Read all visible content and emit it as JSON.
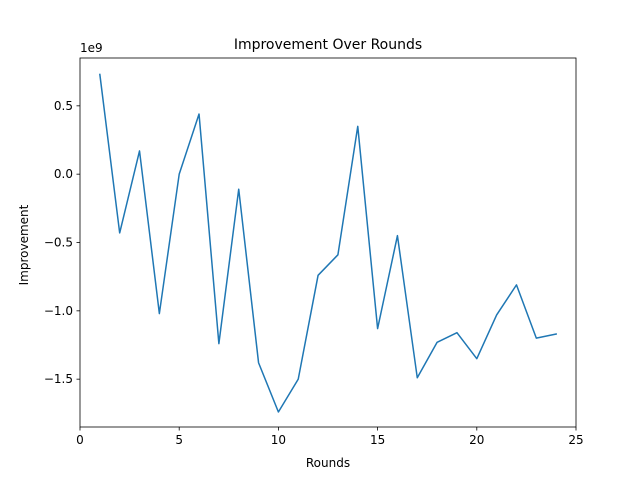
{
  "chart_data": {
    "type": "line",
    "title": "Improvement Over Rounds",
    "xlabel": "Rounds",
    "ylabel": "Improvement",
    "offset_label": "1e9",
    "xlim": [
      0,
      25
    ],
    "ylim": [
      -1.85,
      0.85
    ],
    "xticks": [
      0,
      5,
      10,
      15,
      20,
      25
    ],
    "yticks": [
      0.5,
      0.0,
      -0.5,
      -1.0,
      -1.5
    ],
    "ytick_labels": [
      "0.5",
      "0.0",
      "−0.5",
      "−1.0",
      "−1.5"
    ],
    "grid": false,
    "series": [
      {
        "color": "#1f77b4",
        "x": [
          1,
          2,
          3,
          4,
          5,
          6,
          7,
          8,
          9,
          10,
          11,
          12,
          13,
          14,
          15,
          16,
          17,
          18,
          19,
          20,
          21,
          22,
          23,
          24
        ],
        "y": [
          0.73,
          -0.43,
          0.17,
          -1.02,
          0.0,
          0.44,
          -1.24,
          -0.11,
          -1.38,
          -1.74,
          -1.5,
          -0.74,
          -0.59,
          0.35,
          -1.13,
          -0.45,
          -1.49,
          -1.23,
          -1.16,
          -1.35,
          -1.03,
          -0.81,
          -1.2,
          -1.17
        ]
      }
    ]
  }
}
